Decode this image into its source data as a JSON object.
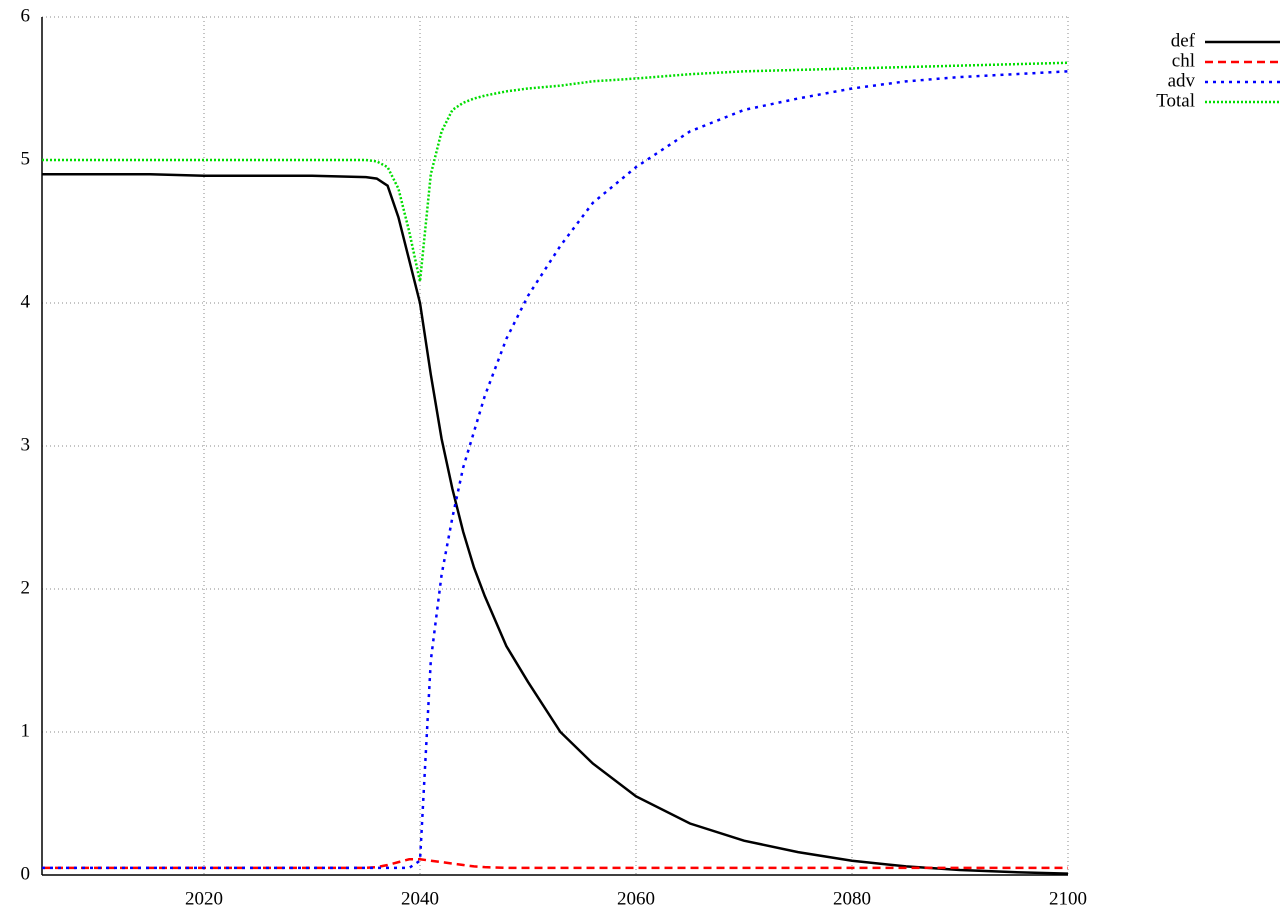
{
  "chart_data": {
    "type": "line",
    "x": [
      2005,
      2010,
      2015,
      2020,
      2025,
      2030,
      2035,
      2036,
      2037,
      2038,
      2039,
      2040,
      2041,
      2042,
      2043,
      2044,
      2045,
      2046,
      2048,
      2050,
      2053,
      2056,
      2060,
      2065,
      2070,
      2075,
      2080,
      2085,
      2090,
      2095,
      2100
    ],
    "series": [
      {
        "name": "def",
        "color": "#000000",
        "dash": "solid",
        "values": [
          4.9,
          4.9,
          4.9,
          4.89,
          4.89,
          4.89,
          4.88,
          4.87,
          4.82,
          4.6,
          4.3,
          4.0,
          3.5,
          3.05,
          2.7,
          2.4,
          2.15,
          1.95,
          1.6,
          1.35,
          1.0,
          0.78,
          0.55,
          0.36,
          0.24,
          0.16,
          0.1,
          0.06,
          0.035,
          0.02,
          0.01
        ]
      },
      {
        "name": "chl",
        "color": "#ff0000",
        "dash": "dashed",
        "values": [
          0.05,
          0.05,
          0.05,
          0.05,
          0.05,
          0.05,
          0.05,
          0.055,
          0.07,
          0.09,
          0.11,
          0.11,
          0.1,
          0.09,
          0.08,
          0.07,
          0.06,
          0.055,
          0.05,
          0.05,
          0.05,
          0.05,
          0.05,
          0.05,
          0.05,
          0.05,
          0.05,
          0.05,
          0.05,
          0.05,
          0.05
        ]
      },
      {
        "name": "adv",
        "color": "#0000ff",
        "dash": "dotted",
        "values": [
          0.05,
          0.05,
          0.05,
          0.05,
          0.05,
          0.05,
          0.05,
          0.05,
          0.05,
          0.05,
          0.05,
          0.1,
          1.5,
          2.1,
          2.5,
          2.85,
          3.1,
          3.35,
          3.75,
          4.05,
          4.4,
          4.7,
          4.95,
          5.2,
          5.35,
          5.43,
          5.5,
          5.55,
          5.58,
          5.6,
          5.62
        ]
      },
      {
        "name": "Total",
        "color": "#00dd00",
        "dash": "fine",
        "values": [
          5.0,
          5.0,
          5.0,
          5.0,
          5.0,
          5.0,
          5.0,
          4.99,
          4.95,
          4.8,
          4.5,
          4.15,
          4.9,
          5.2,
          5.35,
          5.4,
          5.43,
          5.45,
          5.48,
          5.5,
          5.52,
          5.55,
          5.57,
          5.6,
          5.62,
          5.63,
          5.64,
          5.65,
          5.66,
          5.67,
          5.68
        ]
      }
    ],
    "xlim": [
      2005,
      2100
    ],
    "xticks": [
      2020,
      2040,
      2060,
      2080,
      2100
    ],
    "ylim": [
      0,
      6
    ],
    "yticks": [
      0,
      1,
      2,
      3,
      4,
      5,
      6
    ],
    "grid": true,
    "legend": "top-right"
  }
}
